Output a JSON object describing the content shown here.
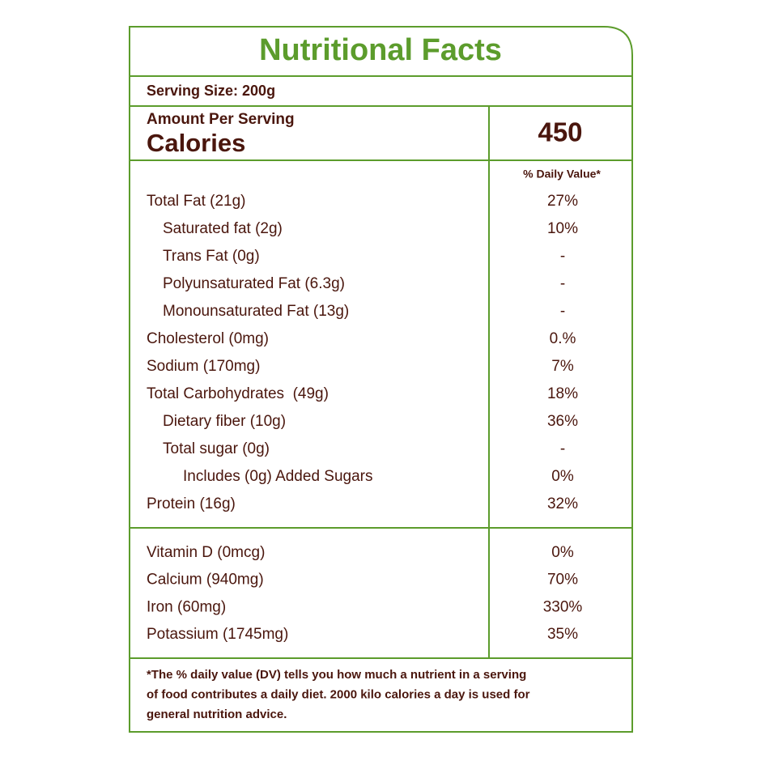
{
  "header": {
    "title": "Nutritional Facts",
    "serving_size": "Serving Size: 200g"
  },
  "calories": {
    "caption": "Amount Per Serving",
    "label": "Calories",
    "value": 450
  },
  "daily_value_header": "% Daily Value*",
  "nutrients": [
    {
      "label": "Total Fat (21g)",
      "dv": "27%",
      "sub": [
        {
          "label": "Saturated fat (2g)",
          "dv": "10%"
        },
        {
          "label": "Trans Fat (0g)",
          "dv": "-"
        },
        {
          "label": "Polyunsaturated Fat (6.3g)",
          "dv": "-"
        },
        {
          "label": "Monounsaturated Fat (13g)",
          "dv": "-"
        }
      ]
    },
    {
      "label": "Cholesterol (0mg)",
      "dv": "0.%"
    },
    {
      "label": "Sodium (170mg)",
      "dv": "7%"
    },
    {
      "label": "Total Carbohydrates  (49g)",
      "dv": "18%",
      "sub": [
        {
          "label": "Dietary fiber (10g)",
          "dv": "36%"
        },
        {
          "label": "Total sugar (0g)",
          "dv": "-",
          "sub": [
            {
              "label": "Includes (0g) Added Sugars",
              "dv": "0%"
            }
          ]
        }
      ]
    },
    {
      "label": "Protein (16g)",
      "dv": "32%"
    }
  ],
  "vitamins_minerals": [
    {
      "label": "Vitamin D (0mcg)",
      "dv": "0%"
    },
    {
      "label": "Calcium (940mg)",
      "dv": "70%"
    },
    {
      "label": "Iron (60mg)",
      "dv": "330%"
    },
    {
      "label": "Potassium (1745mg)",
      "dv": "35%"
    }
  ],
  "footnote": [
    "*The % daily value (DV) tells you how much a nutrient in a serving",
    "of food contributes a daily diet. 2000 kilo calories a day is used for",
    "general nutrition advice."
  ]
}
